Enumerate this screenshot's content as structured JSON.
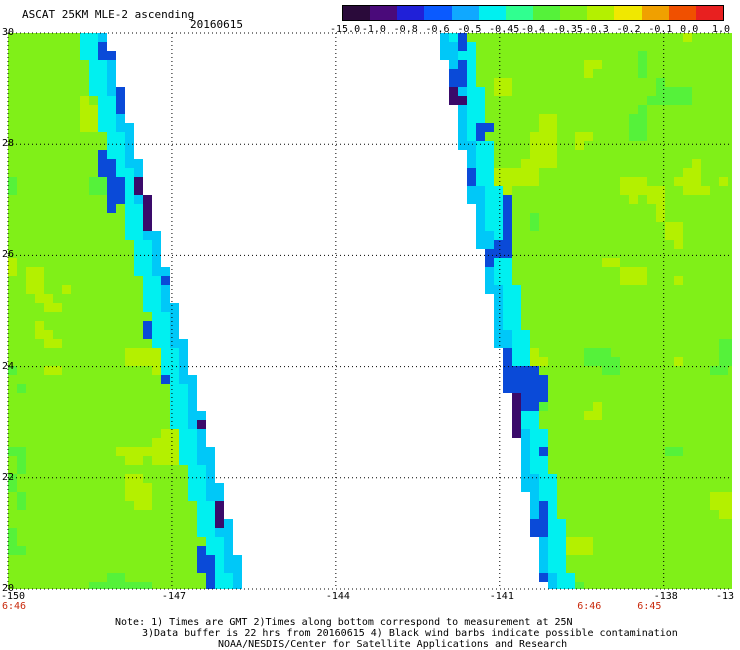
{
  "header": {
    "title": "ASCAT 25KM MLE-2 ascending",
    "date": "20160615"
  },
  "colorbar": {
    "labels": [
      "-15.0",
      "-1.0",
      "-0.8",
      "-0.6",
      "-0.5",
      "-0.45",
      "-0.4",
      "-0.35",
      "-0.3",
      "-0.2",
      "-0.1",
      "0.0",
      "1.0"
    ],
    "colors": [
      "#2a0a3a",
      "#4a0a7a",
      "#2020d8",
      "#0a5aff",
      "#10a8ff",
      "#00f0f0",
      "#30ff90",
      "#55f23a",
      "#80f018",
      "#b4f000",
      "#f0e800",
      "#f0a000",
      "#f05000",
      "#e82020"
    ]
  },
  "map": {
    "lon_ticks": [
      "-150",
      "-147",
      "-144",
      "-141",
      "-138",
      "-13"
    ],
    "lat_ticks": [
      "30",
      "28",
      "26",
      "24",
      "22",
      "20"
    ],
    "time_labels": [
      {
        "text": "6:46",
        "lon": -150
      },
      {
        "text": "6:46",
        "lon": -139.4
      },
      {
        "text": "6:45",
        "lon": -138.3
      }
    ]
  },
  "notes": [
    "Note: 1) Times are GMT 2)Times along bottom correspond to measurement at 25N",
    "3)Data buffer is 22 hrs from 20160615 4) Black wind barbs indicate possible contamination",
    "NOAA/NESDIS/Center for Satellite Applications and Research"
  ]
}
